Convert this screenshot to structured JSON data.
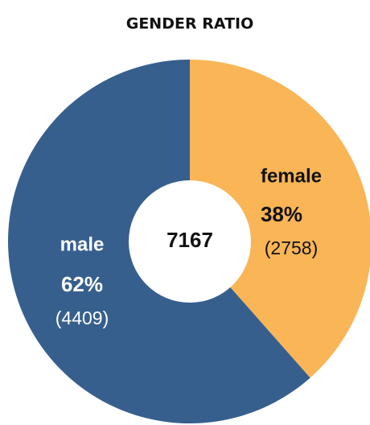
{
  "chart_data": {
    "type": "donut",
    "title": "GENDER RATIO",
    "categories": [
      "female",
      "male"
    ],
    "values": [
      2758,
      4409
    ],
    "value_labels": [
      "(2758)",
      "(4409)"
    ],
    "percent_labels": [
      "38%",
      "62%"
    ],
    "colors": [
      "#f9b556",
      "#365f8e"
    ],
    "label_colors": [
      "#111111",
      "#ffffff"
    ],
    "total": 7167
  }
}
